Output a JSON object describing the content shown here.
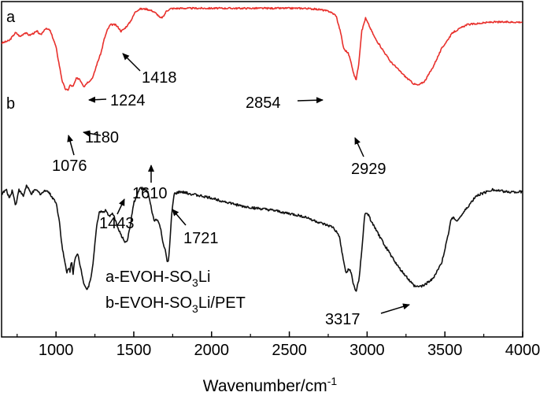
{
  "chart_data": {
    "type": "line",
    "title": "",
    "xlabel": "Wavenumber/cm",
    "xlabel_superscript": "-1",
    "ylabel": "",
    "xlim": [
      650,
      4000
    ],
    "xticks": [
      1000,
      1500,
      2000,
      2500,
      3000,
      3500,
      4000
    ],
    "xtick_labels": [
      "1000",
      "1500",
      "2000",
      "2500",
      "3000",
      "3500",
      "4000"
    ],
    "y_axis": "arbitrary (no ticks)",
    "grid": false,
    "legend": {
      "placement": "bottom-center",
      "entries": [
        {
          "prefix": "a-EVOH-SO",
          "sub": "3",
          "suffix": "Li"
        },
        {
          "prefix": "b-EVOH-SO",
          "sub": "3",
          "suffix": "Li/PET"
        }
      ]
    },
    "series": [
      {
        "name": "a",
        "color": "#e8302c",
        "x": [
          650,
          700,
          740,
          770,
          800,
          830,
          880,
          900,
          930,
          960,
          980,
          1000,
          1020,
          1040,
          1060,
          1076,
          1090,
          1110,
          1130,
          1150,
          1165,
          1180,
          1200,
          1224,
          1240,
          1260,
          1290,
          1310,
          1330,
          1350,
          1380,
          1400,
          1418,
          1440,
          1470,
          1490,
          1510,
          1540,
          1580,
          1620,
          1650,
          1670,
          1690,
          1710,
          1740,
          1800,
          2000,
          2200,
          2400,
          2600,
          2700,
          2760,
          2800,
          2830,
          2845,
          2854,
          2865,
          2880,
          2900,
          2915,
          2929,
          2945,
          2965,
          2990,
          3050,
          3150,
          3250,
          3300,
          3330,
          3370,
          3420,
          3480,
          3550,
          3640,
          3800,
          4000
        ],
        "y": [
          0.72,
          0.74,
          0.8,
          0.77,
          0.8,
          0.78,
          0.81,
          0.78,
          0.83,
          0.82,
          0.76,
          0.69,
          0.56,
          0.43,
          0.37,
          0.36,
          0.4,
          0.39,
          0.45,
          0.45,
          0.42,
          0.39,
          0.42,
          0.44,
          0.47,
          0.55,
          0.65,
          0.75,
          0.82,
          0.86,
          0.86,
          0.84,
          0.81,
          0.83,
          0.87,
          0.91,
          0.96,
          0.98,
          0.98,
          0.965,
          0.94,
          0.91,
          0.92,
          0.965,
          0.983,
          0.985,
          0.985,
          0.985,
          0.985,
          0.985,
          0.975,
          0.96,
          0.93,
          0.8,
          0.7,
          0.67,
          0.66,
          0.64,
          0.56,
          0.48,
          0.44,
          0.55,
          0.81,
          0.91,
          0.76,
          0.58,
          0.46,
          0.41,
          0.4,
          0.43,
          0.53,
          0.68,
          0.8,
          0.86,
          0.88,
          0.88
        ]
      },
      {
        "name": "b",
        "color": "#111111",
        "x": [
          650,
          680,
          700,
          720,
          740,
          760,
          790,
          810,
          840,
          870,
          900,
          940,
          970,
          1000,
          1020,
          1040,
          1060,
          1070,
          1080,
          1090,
          1100,
          1110,
          1120,
          1140,
          1160,
          1180,
          1200,
          1210,
          1220,
          1240,
          1260,
          1280,
          1300,
          1320,
          1340,
          1360,
          1380,
          1400,
          1420,
          1443,
          1460,
          1480,
          1500,
          1520,
          1540,
          1570,
          1590,
          1610,
          1630,
          1650,
          1670,
          1690,
          1705,
          1712,
          1721,
          1730,
          1745,
          1760,
          1800,
          2000,
          2200,
          2400,
          2600,
          2700,
          2780,
          2820,
          2850,
          2865,
          2880,
          2895,
          2910,
          2929,
          2950,
          2970,
          2985,
          3000,
          3040,
          3100,
          3200,
          3300,
          3317,
          3360,
          3420,
          3480,
          3520,
          3540,
          3555,
          3570,
          3600,
          3700,
          3800,
          3900,
          4000
        ],
        "y": [
          0.58,
          0.6,
          0.56,
          0.6,
          0.52,
          0.6,
          0.57,
          0.62,
          0.58,
          0.6,
          0.58,
          0.6,
          0.57,
          0.54,
          0.46,
          0.32,
          0.24,
          0.2,
          0.23,
          0.21,
          0.26,
          0.2,
          0.27,
          0.29,
          0.22,
          0.15,
          0.12,
          0.14,
          0.16,
          0.26,
          0.42,
          0.5,
          0.49,
          0.5,
          0.47,
          0.49,
          0.46,
          0.41,
          0.38,
          0.35,
          0.36,
          0.44,
          0.54,
          0.57,
          0.61,
          0.6,
          0.59,
          0.52,
          0.45,
          0.46,
          0.42,
          0.34,
          0.3,
          0.26,
          0.25,
          0.32,
          0.5,
          0.58,
          0.59,
          0.56,
          0.52,
          0.5,
          0.47,
          0.44,
          0.42,
          0.38,
          0.25,
          0.2,
          0.22,
          0.21,
          0.15,
          0.11,
          0.18,
          0.35,
          0.48,
          0.49,
          0.43,
          0.35,
          0.23,
          0.14,
          0.135,
          0.14,
          0.17,
          0.25,
          0.38,
          0.46,
          0.47,
          0.45,
          0.47,
          0.57,
          0.6,
          0.59,
          0.59
        ]
      }
    ],
    "curve_labels": [
      "a",
      "b"
    ],
    "annotations": [
      {
        "text": "1418",
        "series": "a",
        "x": 1418
      },
      {
        "text": "1224",
        "series": "a",
        "x": 1224
      },
      {
        "text": "1180",
        "series": "a",
        "x": 1180
      },
      {
        "text": "1076",
        "series": "a",
        "x": 1076
      },
      {
        "text": "2854",
        "series": "a",
        "x": 2854
      },
      {
        "text": "2929",
        "series": "a",
        "x": 2929
      },
      {
        "text": "1610",
        "series": "b",
        "x": 1610
      },
      {
        "text": "1443",
        "series": "b",
        "x": 1443
      },
      {
        "text": "1721",
        "series": "b",
        "x": 1721
      },
      {
        "text": "3317",
        "series": "b",
        "x": 3317
      }
    ]
  }
}
